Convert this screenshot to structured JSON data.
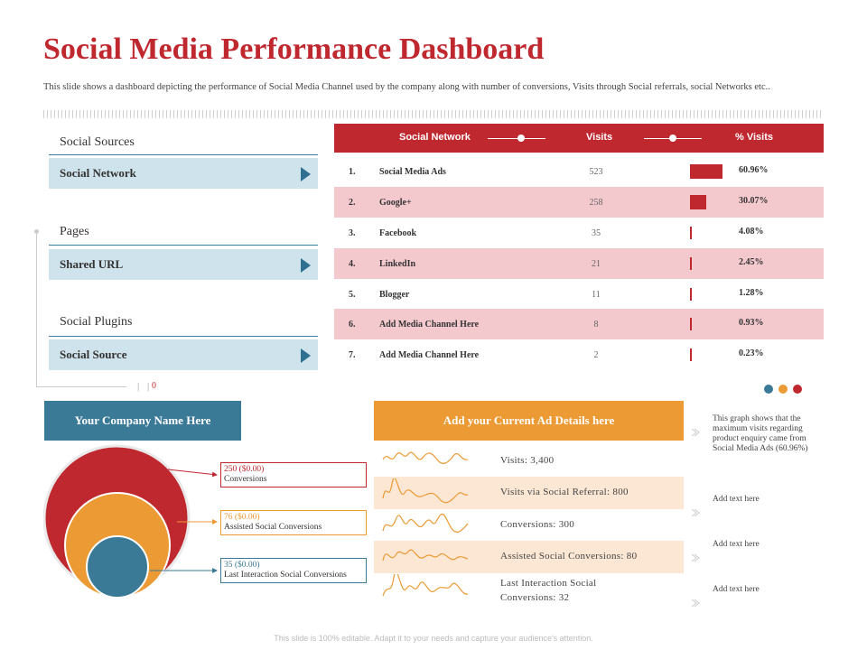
{
  "title": "Social Media Performance Dashboard",
  "subtitle": "This slide shows a dashboard depicting the performance of Social Media Channel used by the company along with number of conversions, Visits through Social referrals, social Networks etc..",
  "left_menu": {
    "sections": [
      {
        "heading": "Social Sources",
        "item": "Social Network"
      },
      {
        "heading": "Pages",
        "item": "Shared URL"
      },
      {
        "heading": "Social Plugins",
        "item": "Social Source"
      }
    ],
    "tick_label": "0"
  },
  "table": {
    "headers": {
      "network": "Social Network",
      "visits": "Visits",
      "pct": "% Visits"
    },
    "rows": [
      {
        "num": "1.",
        "name": "Social Media Ads",
        "visits": "523",
        "pct": "60.96%",
        "share": 60.96
      },
      {
        "num": "2.",
        "name": "Google+",
        "visits": "258",
        "pct": "30.07%",
        "share": 30.07
      },
      {
        "num": "3.",
        "name": "Facebook",
        "visits": "35",
        "pct": "4.08%",
        "share": 4.08
      },
      {
        "num": "4.",
        "name": "LinkedIn",
        "visits": "21",
        "pct": "2.45%",
        "share": 2.45
      },
      {
        "num": "5.",
        "name": "Blogger",
        "visits": "11",
        "pct": "1.28%",
        "share": 1.28
      },
      {
        "num": "6.",
        "name": "Add Media Channel Here",
        "visits": "8",
        "pct": "0.93%",
        "share": 0.93
      },
      {
        "num": "7.",
        "name": "Add Media Channel Here",
        "visits": "2",
        "pct": "0.23%",
        "share": 0.23
      }
    ]
  },
  "colors": {
    "red": "#c0282f",
    "orange": "#ec9a34",
    "blue": "#3b7a96",
    "pink": "#f4c9ce",
    "light_blue": "#cfe3ec"
  },
  "company_box": "Your Company Name Here",
  "conversions": [
    {
      "value": "250 ($0.00)",
      "label": "Conversions",
      "color": "#c0282f"
    },
    {
      "value": "76 ($0.00)",
      "label": "Assisted Social Conversions",
      "color": "#ec9a34"
    },
    {
      "value": "35 ($0.00)",
      "label": "Last Interaction Social Conversions",
      "color": "#3b7a96"
    }
  ],
  "ad_box": "Add your Current Ad Details here",
  "metrics": [
    {
      "text": "Visits: 3,400"
    },
    {
      "text": "Visits via Social Referral: 800"
    },
    {
      "text": "Conversions: 300"
    },
    {
      "text": "Assisted Social Conversions: 80"
    },
    {
      "text": "Last Interaction Social",
      "text2": "Conversions: 32"
    }
  ],
  "notes": [
    "This graph shows that the maximum visits regarding product enquiry came from Social Media Ads (60.96%)",
    "Add text here",
    "Add text here",
    "Add text here"
  ],
  "footer": "This slide is 100% editable. Adapt it to your needs and capture your audience's attention."
}
